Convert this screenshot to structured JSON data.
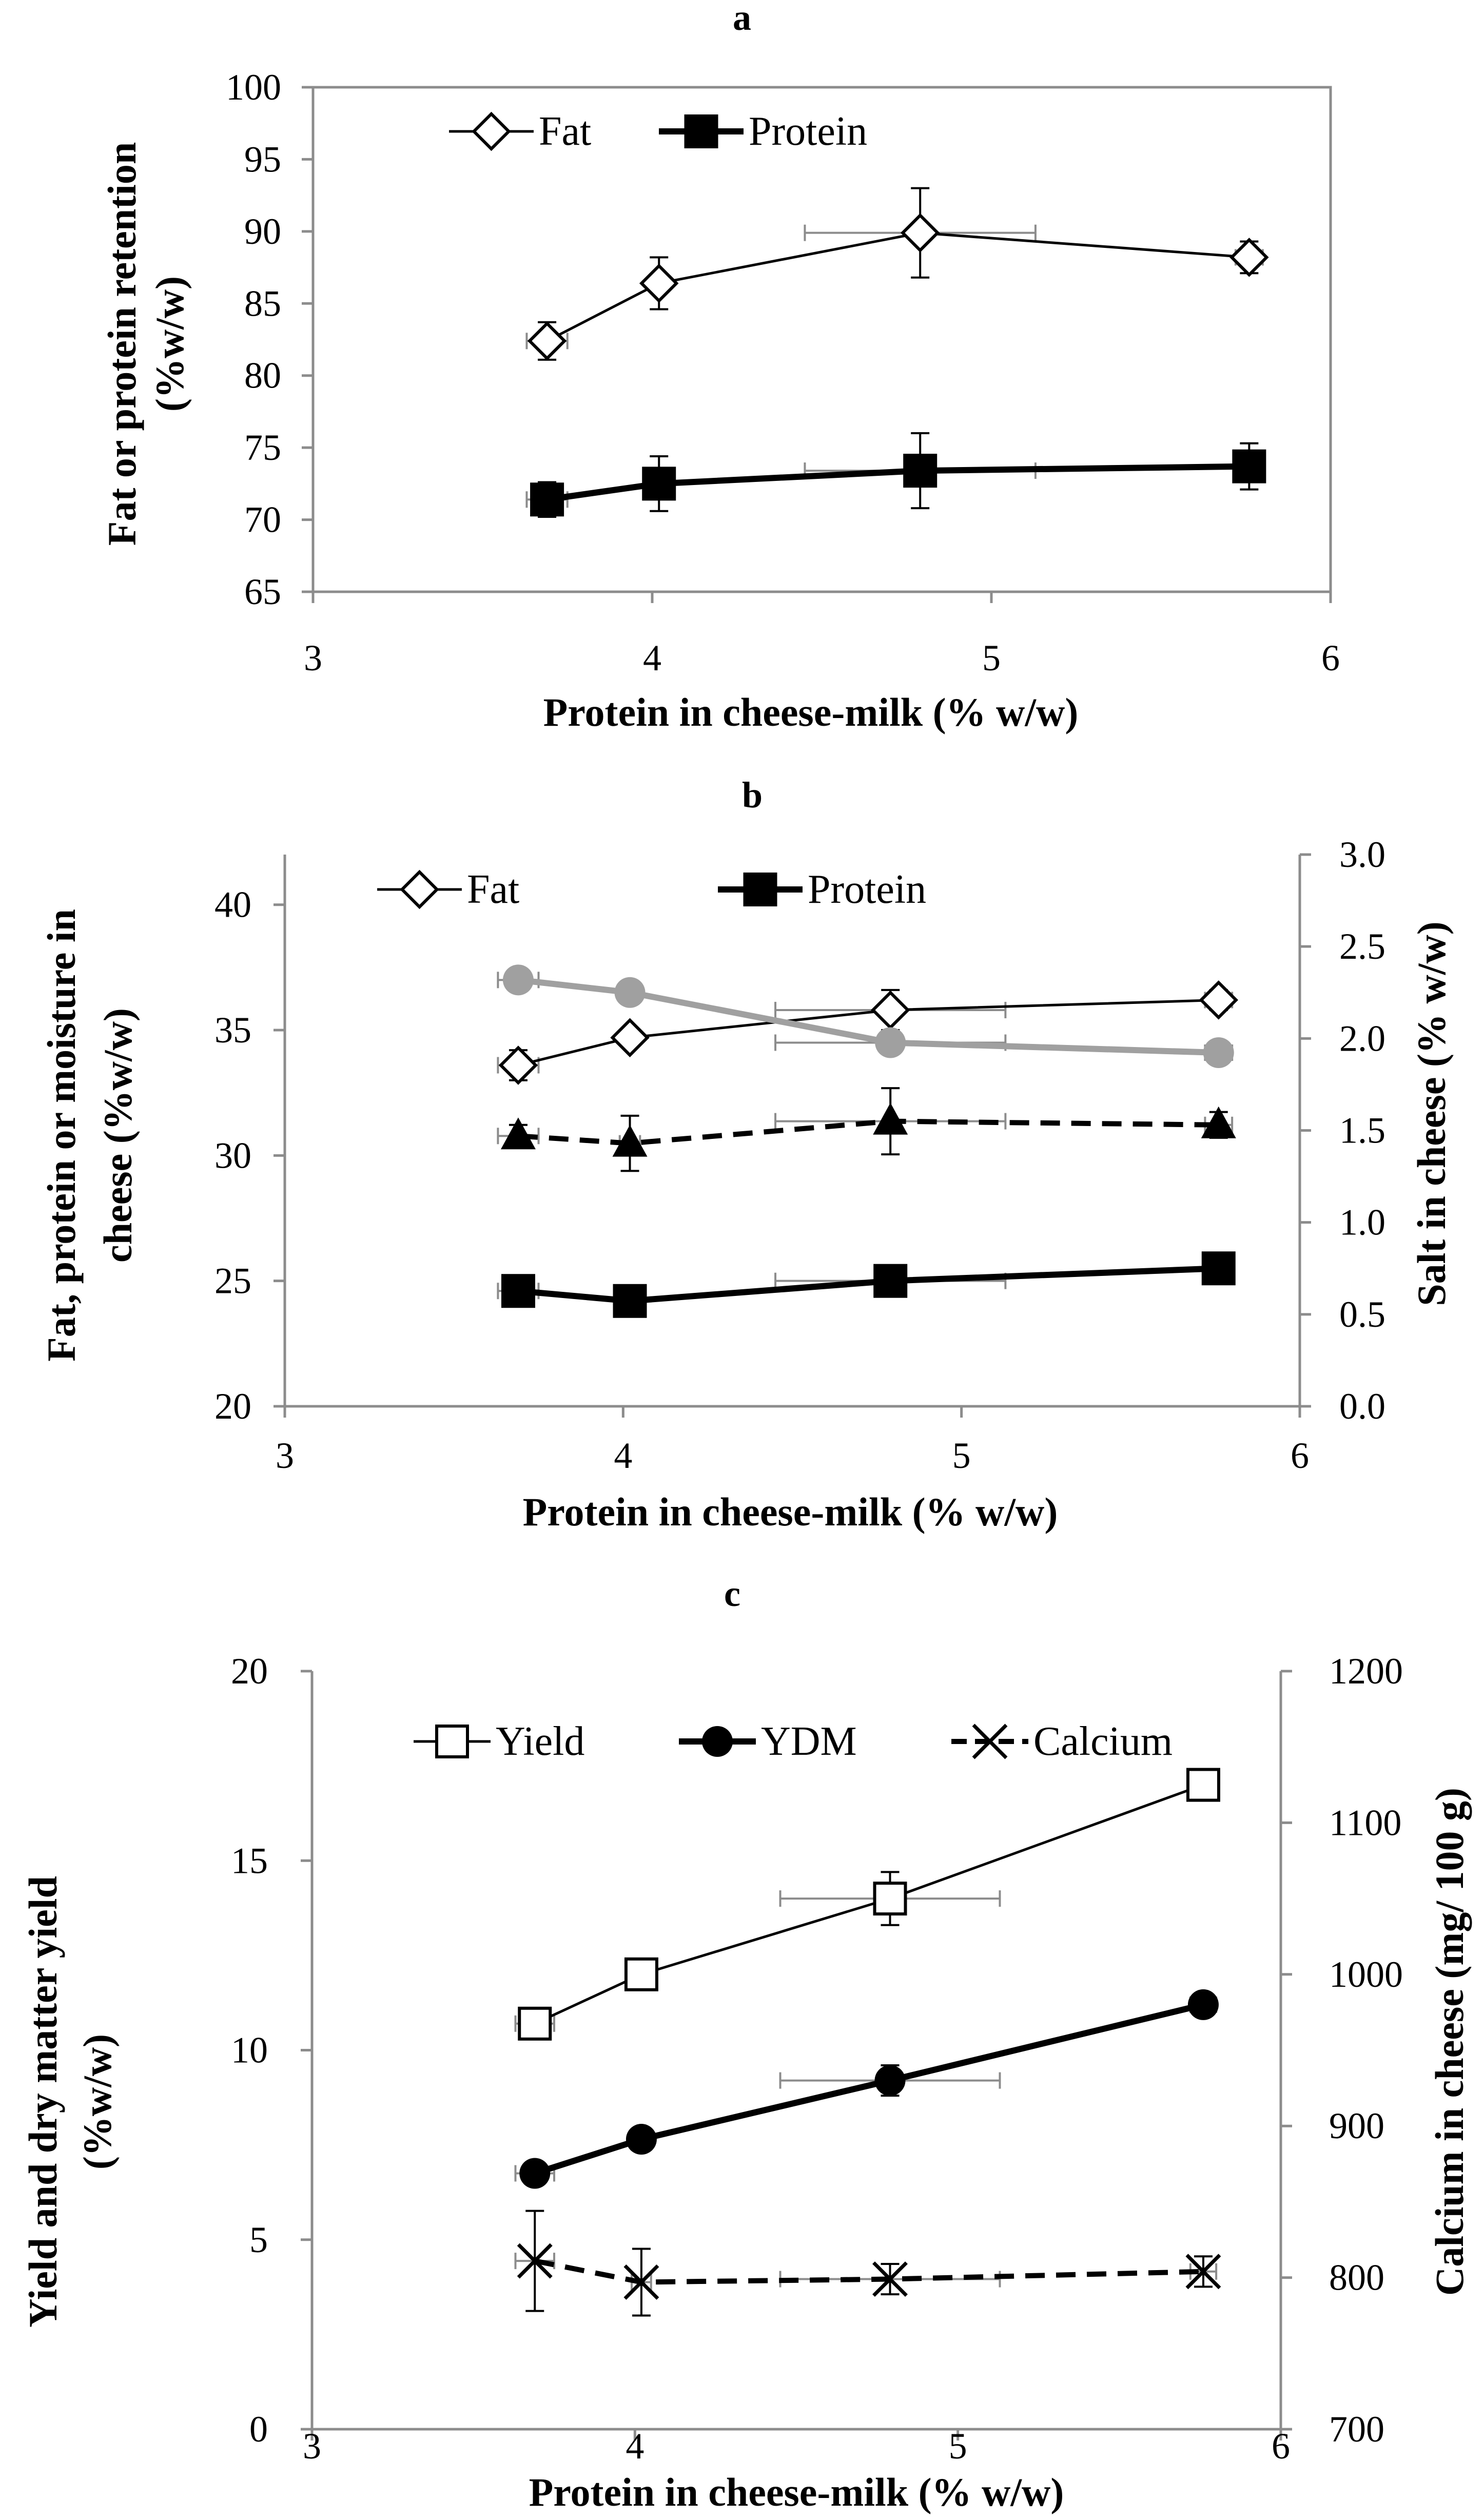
{
  "chart_data": [
    {
      "panel": "a",
      "type": "line",
      "xlabel": "Protein in cheese-milk (% w/w)",
      "ylabel": [
        "Fat or protein retention",
        "(%w/w)"
      ],
      "xlim": [
        3,
        6
      ],
      "ylim": [
        65,
        100
      ],
      "xticks": [
        "3",
        "4",
        "5",
        "6"
      ],
      "yticks": [
        "65",
        "70",
        "75",
        "80",
        "85",
        "90",
        "95",
        "100"
      ],
      "legend": {
        "placement": "top-center",
        "entries": [
          "Fat",
          "Protein"
        ]
      },
      "series": [
        {
          "name": "Fat",
          "marker": "diamond-open",
          "line": "solid-thin",
          "color": "#000000",
          "x": [
            3.69,
            4.02,
            4.79,
            5.76
          ],
          "y": [
            82.4,
            86.4,
            89.9,
            88.2
          ],
          "yerr": [
            1.3,
            1.8,
            3.1,
            1.1
          ],
          "xerr": [
            0.06,
            0.03,
            0.34,
            0.04
          ]
        },
        {
          "name": "Protein",
          "marker": "square-filled",
          "line": "solid-thick",
          "color": "#000000",
          "x": [
            3.69,
            4.02,
            4.79,
            5.76
          ],
          "y": [
            71.4,
            72.5,
            73.4,
            73.7
          ],
          "yerr": [
            1.2,
            1.9,
            2.6,
            1.6
          ],
          "xerr": [
            0.06,
            0.03,
            0.34,
            0.04
          ]
        }
      ]
    },
    {
      "panel": "b",
      "type": "line",
      "xlabel": "Protein in cheese-milk (% w/w)",
      "ylabel": [
        "Fat, protein or moisture in",
        "cheese  (%w/w)"
      ],
      "y2label": "Salt in cheese (% w/w)",
      "xlim": [
        3,
        6
      ],
      "ylim": [
        20,
        42
      ],
      "y2lim": [
        0,
        3
      ],
      "xticks": [
        "3",
        "4",
        "5",
        "6"
      ],
      "yticks": [
        "20",
        "25",
        "30",
        "35",
        "40"
      ],
      "y2ticks": [
        "0.0",
        "0.5",
        "1.0",
        "1.5",
        "2.0",
        "2.5",
        "3.0"
      ],
      "legend": {
        "placement": "top-center",
        "entries": [
          "Fat",
          "Protein"
        ]
      },
      "series": [
        {
          "name": "Fat",
          "marker": "diamond-open",
          "line": "solid-thin",
          "color": "#000000",
          "axis": "left",
          "x": [
            3.69,
            4.02,
            4.79,
            5.76
          ],
          "y": [
            33.6,
            34.7,
            35.8,
            36.2
          ],
          "yerr": [
            0.6,
            0.3,
            0.8,
            0.4
          ],
          "xerr": [
            0.06,
            0.03,
            0.34,
            0.04
          ]
        },
        {
          "name": "Protein",
          "marker": "square-filled",
          "line": "solid-thick",
          "color": "#000000",
          "axis": "left",
          "x": [
            3.69,
            4.02,
            4.79,
            5.76
          ],
          "y": [
            24.6,
            24.2,
            25.0,
            25.5
          ],
          "yerr": [
            0.3,
            0.3,
            0.3,
            0.3
          ],
          "xerr": [
            0.06,
            0.03,
            0.34,
            0.04
          ]
        },
        {
          "marker": "circle-filled",
          "line": "solid-thick",
          "color": "#a0a0a0",
          "axis": "left",
          "x": [
            3.69,
            4.02,
            4.79,
            5.76
          ],
          "y": [
            37.0,
            36.5,
            34.5,
            34.1
          ],
          "yerr": [
            0.4,
            0.3,
            0.3,
            0.3
          ],
          "xerr": [
            0.06,
            0.03,
            0.34,
            0.04
          ]
        },
        {
          "marker": "triangle-filled",
          "line": "dashed-thick",
          "color": "#000000",
          "axis": "right",
          "x": [
            3.69,
            4.02,
            4.79,
            5.76
          ],
          "y": [
            1.47,
            1.43,
            1.55,
            1.53
          ],
          "yerr": [
            0.06,
            0.15,
            0.18,
            0.07
          ],
          "xerr": [
            0.06,
            0.03,
            0.34,
            0.04
          ]
        }
      ]
    },
    {
      "panel": "c",
      "type": "line",
      "xlabel": "Protein in cheese-milk (% w/w)",
      "ylabel": [
        "Yield and dry matter yield",
        "(%w/w)"
      ],
      "y2label": "Calcium in cheese (mg/ 100 g)",
      "xlim": [
        3,
        6
      ],
      "ylim": [
        0,
        20
      ],
      "y2lim": [
        700,
        1200
      ],
      "xticks": [
        "3",
        "4",
        "5",
        "6"
      ],
      "yticks": [
        "0",
        "5",
        "10",
        "15",
        "20"
      ],
      "y2ticks": [
        "700",
        "800",
        "900",
        "1000",
        "1100",
        "1200"
      ],
      "legend": {
        "placement": "top-right",
        "entries": [
          "Yield",
          "YDM",
          "Calcium"
        ]
      },
      "series": [
        {
          "name": "Yield",
          "marker": "square-open",
          "line": "solid-thin",
          "color": "#000000",
          "axis": "left",
          "x": [
            3.69,
            4.02,
            4.79,
            5.76
          ],
          "y": [
            10.7,
            12.0,
            14.0,
            17.0
          ],
          "yerr": [
            0.3,
            0.2,
            0.7,
            0.2
          ],
          "xerr": [
            0.06,
            0.03,
            0.34,
            0.04
          ]
        },
        {
          "name": "YDM",
          "marker": "circle-filled",
          "line": "solid-thick",
          "color": "#000000",
          "axis": "left",
          "x": [
            3.69,
            4.02,
            4.79,
            5.76
          ],
          "y": [
            6.75,
            7.65,
            9.2,
            11.2
          ],
          "yerr": [
            0.1,
            0.1,
            0.4,
            0.1
          ],
          "xerr": [
            0.06,
            0.03,
            0.34,
            0.04
          ]
        },
        {
          "name": "Calcium",
          "marker": "x",
          "line": "dashed-thick",
          "color": "#000000",
          "axis": "right",
          "x": [
            3.69,
            4.02,
            4.79,
            5.76
          ],
          "y": [
            811,
            797,
            799,
            804
          ],
          "yerr": [
            33,
            22,
            10,
            10
          ],
          "xerr": [
            0.06,
            0.03,
            0.34,
            0.04
          ]
        }
      ]
    }
  ]
}
